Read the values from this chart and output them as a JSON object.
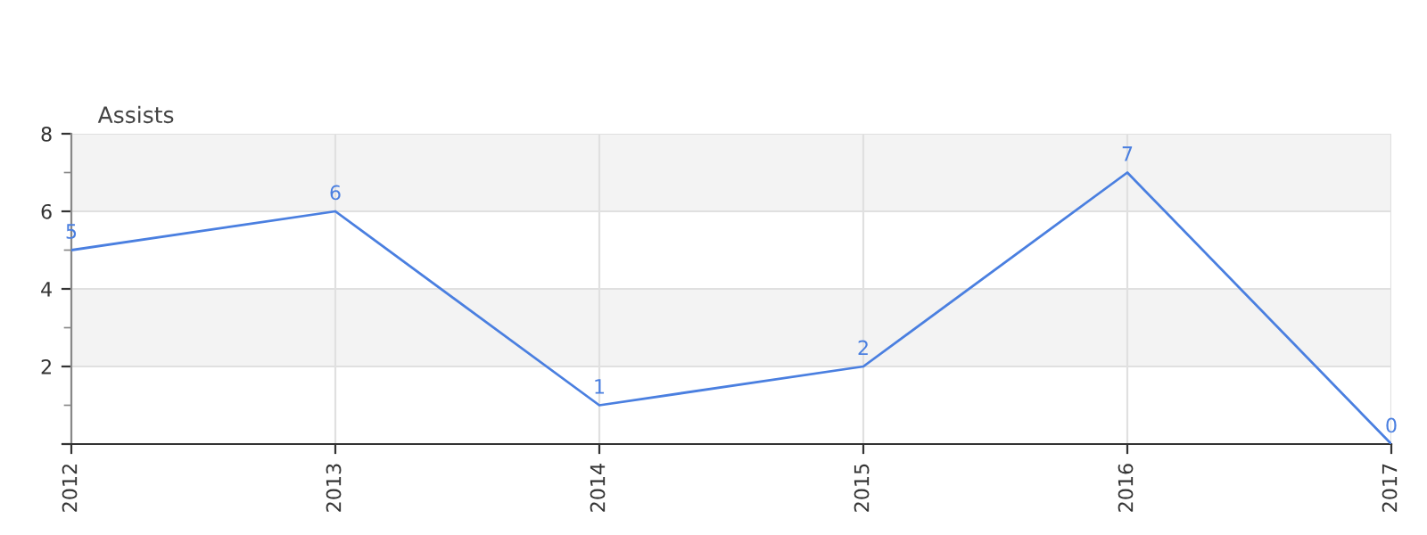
{
  "chart_data": {
    "type": "line",
    "categories": [
      "2012",
      "2013",
      "2014",
      "2015",
      "2016",
      "2017"
    ],
    "series": [
      {
        "name": "Assists",
        "color": "#4a7fe0",
        "values": [
          5,
          6,
          1,
          2,
          7,
          0
        ]
      }
    ],
    "ylim": [
      0,
      8
    ],
    "yticks": [
      {
        "value": 0,
        "label": null
      },
      2,
      4,
      6,
      8
    ],
    "grid": true,
    "legend": "top left",
    "data_labels": true,
    "marker": "none",
    "line_style": "solid",
    "bands": [
      {
        "axis": "y",
        "from": 2,
        "to": 4,
        "color": "#f3f3f3"
      },
      {
        "axis": "y",
        "from": 6,
        "to": 8,
        "color": "#f3f3f3"
      }
    ]
  }
}
